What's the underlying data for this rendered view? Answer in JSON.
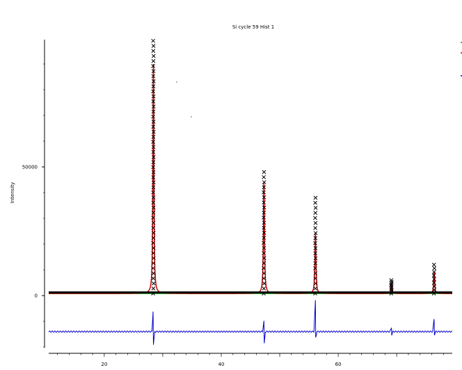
{
  "chart_data": {
    "type": "line",
    "title": "Si cycle 59 Hist 1",
    "xlabel": "",
    "ylabel": "Intensity",
    "xlim": [
      10.5,
      79.5
    ],
    "ylim": [
      -20000,
      100000
    ],
    "x_ticks": [
      20,
      40,
      60
    ],
    "x_tick_labels": [
      "20",
      "40",
      "60"
    ],
    "y_ticks": [
      0,
      50000
    ],
    "y_tick_labels": [
      "0",
      "50000"
    ],
    "grid": false,
    "legend": "top-right (clipped)",
    "colors": {
      "observed": "#000000",
      "calculated": "#cc0000",
      "background": "#00aa00",
      "difference": "#0000cc"
    },
    "background_level": 800,
    "difference_offset": -14000,
    "peaks": [
      {
        "x": 28.4,
        "obs": 99000,
        "calc": 90000,
        "width": 0.18
      },
      {
        "x": 47.3,
        "obs": 48000,
        "calc": 44000,
        "width": 0.2
      },
      {
        "x": 56.1,
        "obs": 38000,
        "calc": 24000,
        "width": 0.2
      },
      {
        "x": 69.1,
        "obs": 6000,
        "calc": 5000,
        "width": 0.18
      },
      {
        "x": 76.4,
        "obs": 12000,
        "calc": 9000,
        "width": 0.2
      }
    ],
    "difference_spikes": [
      {
        "x": 28.4,
        "up": 10000,
        "down": -5000
      },
      {
        "x": 47.3,
        "up": 4000,
        "down": -6000
      },
      {
        "x": 56.1,
        "up": 12000,
        "down": -3000
      },
      {
        "x": 69.1,
        "up": 1500,
        "down": -1500
      },
      {
        "x": 76.4,
        "up": 5000,
        "down": -1500
      }
    ]
  }
}
